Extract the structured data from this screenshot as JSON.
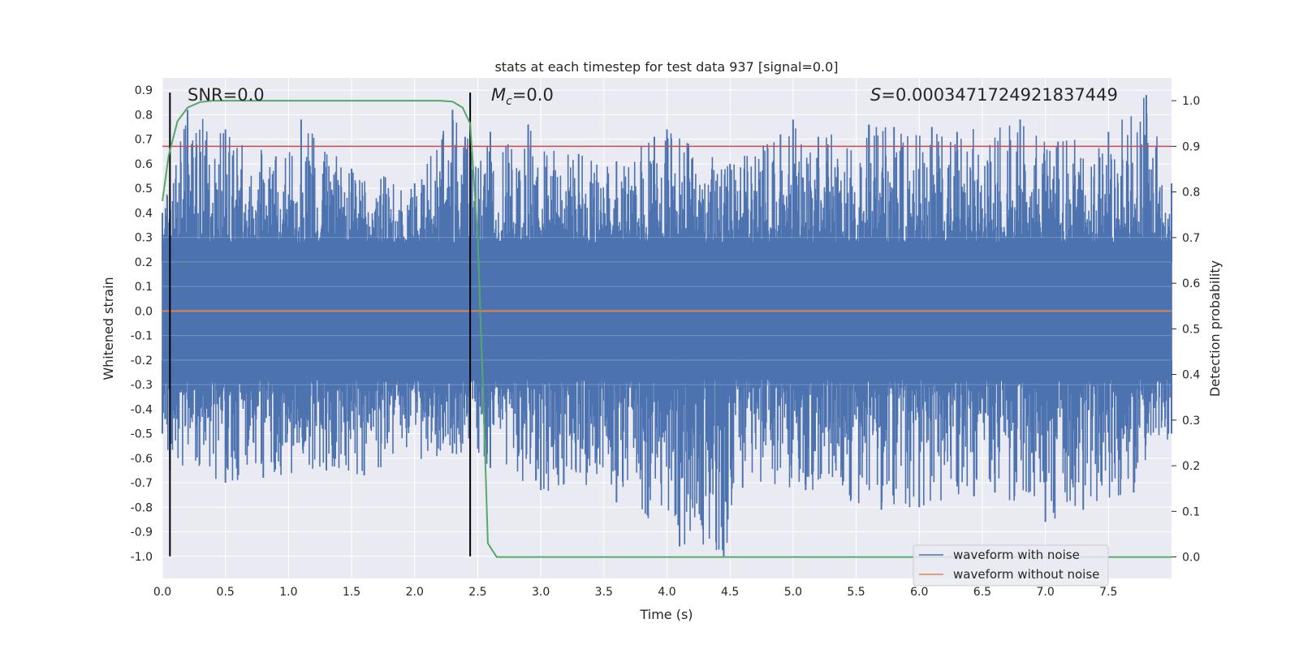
{
  "chart_data": {
    "type": "line",
    "title": "stats at each timestep for test data 937 [signal=0.0]",
    "xlabel": "Time (s)",
    "ylabel": "Whitened strain",
    "y2label": "Detection probability",
    "xlim": [
      0.0,
      8.0
    ],
    "ylim": [
      -1.09,
      0.95
    ],
    "y2lim": [
      -0.047,
      1.05
    ],
    "xticks": [
      "0.0",
      "0.5",
      "1.0",
      "1.5",
      "2.0",
      "2.5",
      "3.0",
      "3.5",
      "4.0",
      "4.5",
      "5.0",
      "5.5",
      "6.0",
      "6.5",
      "7.0",
      "7.5"
    ],
    "yticks": [
      "0.9",
      "0.8",
      "0.7",
      "0.6",
      "0.5",
      "0.4",
      "0.3",
      "0.2",
      "0.1",
      "0.0",
      "-0.1",
      "-0.2",
      "-0.3",
      "-0.4",
      "-0.5",
      "-0.6",
      "-0.7",
      "-0.8",
      "-0.9",
      "-1.0"
    ],
    "y2ticks": [
      "1.0",
      "0.9",
      "0.8",
      "0.7",
      "0.6",
      "0.5",
      "0.4",
      "0.3",
      "0.2",
      "0.1",
      "0.0"
    ],
    "annotations": {
      "snr": "SNR=0.0",
      "mc_symbol": "M",
      "mc_sub": "c",
      "mc_value": "=0.0",
      "s_symbol": "S",
      "s_value": "=0.0003471724921837449"
    },
    "threshold": {
      "probability": 0.9,
      "color": "#c44e52"
    },
    "vertical_lines": [
      0.06,
      2.44
    ],
    "series": [
      {
        "name": "waveform with noise",
        "color": "#4c72b0",
        "envelope_upper": [
          [
            0.0,
            0.4
          ],
          [
            0.2,
            0.82
          ],
          [
            0.5,
            0.74
          ],
          [
            0.9,
            0.63
          ],
          [
            1.1,
            0.78
          ],
          [
            1.5,
            0.58
          ],
          [
            2.0,
            0.52
          ],
          [
            2.3,
            0.82
          ],
          [
            2.4,
            0.71
          ],
          [
            2.6,
            0.73
          ],
          [
            2.9,
            0.76
          ],
          [
            3.3,
            0.64
          ],
          [
            3.6,
            0.61
          ],
          [
            3.9,
            0.71
          ],
          [
            4.0,
            0.74
          ],
          [
            4.5,
            0.6
          ],
          [
            4.9,
            0.72
          ],
          [
            5.0,
            0.78
          ],
          [
            5.2,
            0.71
          ],
          [
            5.6,
            0.76
          ],
          [
            5.8,
            0.75
          ],
          [
            6.1,
            0.75
          ],
          [
            6.3,
            0.73
          ],
          [
            6.8,
            0.78
          ],
          [
            7.1,
            0.69
          ],
          [
            7.5,
            0.73
          ],
          [
            7.8,
            0.88
          ],
          [
            8.0,
            0.52
          ]
        ],
        "envelope_lower": [
          [
            0.0,
            -0.5
          ],
          [
            0.06,
            -0.65
          ],
          [
            0.5,
            -0.7
          ],
          [
            0.8,
            -0.68
          ],
          [
            1.3,
            -0.65
          ],
          [
            1.6,
            -0.67
          ],
          [
            2.3,
            -0.58
          ],
          [
            2.6,
            -0.64
          ],
          [
            3.0,
            -0.73
          ],
          [
            3.6,
            -0.78
          ],
          [
            4.1,
            -0.96
          ],
          [
            4.45,
            -1.0
          ],
          [
            4.6,
            -0.72
          ],
          [
            5.1,
            -0.73
          ],
          [
            5.7,
            -0.81
          ],
          [
            6.0,
            -0.8
          ],
          [
            6.6,
            -0.74
          ],
          [
            7.0,
            -0.86
          ],
          [
            7.3,
            -0.81
          ],
          [
            7.7,
            -0.74
          ],
          [
            8.0,
            -0.5
          ]
        ]
      },
      {
        "name": "waveform without noise",
        "color": "#dd8452",
        "points": [
          [
            0.0,
            0.0
          ],
          [
            8.0,
            0.0
          ]
        ]
      },
      {
        "name": "detection probability",
        "color": "#55a868",
        "axis": "right",
        "points": [
          [
            0.0,
            0.78
          ],
          [
            0.05,
            0.88
          ],
          [
            0.12,
            0.955
          ],
          [
            0.2,
            0.985
          ],
          [
            0.3,
            0.997
          ],
          [
            0.4,
            1.0
          ],
          [
            2.2,
            1.0
          ],
          [
            2.3,
            0.998
          ],
          [
            2.38,
            0.985
          ],
          [
            2.44,
            0.95
          ],
          [
            2.5,
            0.7
          ],
          [
            2.55,
            0.3
          ],
          [
            2.58,
            0.03
          ],
          [
            2.65,
            0.0
          ],
          [
            8.0,
            0.0
          ]
        ]
      }
    ],
    "legend": {
      "position": "lower-right",
      "entries": [
        "waveform with noise",
        "waveform without noise"
      ]
    }
  }
}
